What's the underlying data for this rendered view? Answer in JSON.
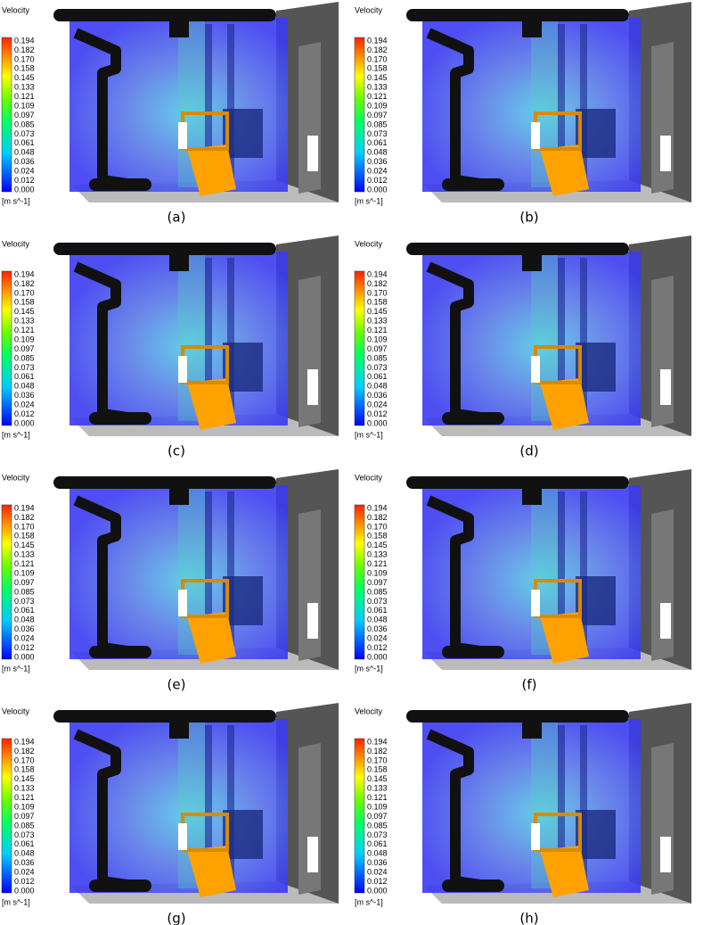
{
  "panels": [
    {
      "legend_title": "Velocity",
      "labels": [
        "0.194",
        "0.182",
        "0.170",
        "0.158",
        "0.145",
        "0.133",
        "0.121",
        "0.109",
        "0.097",
        "0.085",
        "0.073",
        "0.061",
        "0.048",
        "0.036",
        "0.024",
        "0.012",
        "0.000"
      ],
      "unit": "[m s^-1]",
      "caption": "(a)"
    },
    {
      "legend_title": "Velocity",
      "labels": [
        "0.194",
        "0.182",
        "0.170",
        "0.158",
        "0.145",
        "0.133",
        "0.121",
        "0.109",
        "0.097",
        "0.085",
        "0.073",
        "0.061",
        "0.048",
        "0.036",
        "0.024",
        "0.012",
        "0.000"
      ],
      "unit": "[m s^-1]",
      "caption": "(b)"
    },
    {
      "legend_title": "Velocity",
      "labels": [
        "0.194",
        "0.182",
        "0.170",
        "0.158",
        "0.145",
        "0.133",
        "0.121",
        "0.109",
        "0.097",
        "0.085",
        "0.073",
        "0.061",
        "0.048",
        "0.036",
        "0.024",
        "0.012",
        "0.000"
      ],
      "unit": "[m s^-1]",
      "caption": "(c)"
    },
    {
      "legend_title": "Velocity",
      "labels": [
        "0.194",
        "0.182",
        "0.170",
        "0.158",
        "0.145",
        "0.133",
        "0.121",
        "0.109",
        "0.097",
        "0.085",
        "0.073",
        "0.061",
        "0.048",
        "0.036",
        "0.024",
        "0.012",
        "0.000"
      ],
      "unit": "[m s^-1]",
      "caption": "(d)"
    },
    {
      "legend_title": "Velocity",
      "labels": [
        "0.194",
        "0.182",
        "0.170",
        "0.158",
        "0.145",
        "0.133",
        "0.121",
        "0.109",
        "0.097",
        "0.085",
        "0.073",
        "0.061",
        "0.048",
        "0.036",
        "0.024",
        "0.012",
        "0.000"
      ],
      "unit": "[m s^-1]",
      "caption": "(e)"
    },
    {
      "legend_title": "Velocity",
      "labels": [
        "0.194",
        "0.182",
        "0.170",
        "0.158",
        "0.145",
        "0.133",
        "0.121",
        "0.109",
        "0.097",
        "0.085",
        "0.073",
        "0.061",
        "0.048",
        "0.036",
        "0.024",
        "0.012",
        "0.000"
      ],
      "unit": "[m s^-1]",
      "caption": "(f)"
    },
    {
      "legend_title": "Velocity",
      "labels": [
        "0.194",
        "0.182",
        "0.170",
        "0.158",
        "0.145",
        "0.133",
        "0.121",
        "0.109",
        "0.097",
        "0.085",
        "0.073",
        "0.061",
        "0.048",
        "0.036",
        "0.024",
        "0.012",
        "0.000"
      ],
      "unit": "[m s^-1]",
      "caption": "(g)"
    },
    {
      "legend_title": "Velocity",
      "labels": [
        "0.194",
        "0.182",
        "0.170",
        "0.158",
        "0.145",
        "0.133",
        "0.121",
        "0.109",
        "0.097",
        "0.085",
        "0.073",
        "0.061",
        "0.048",
        "0.036",
        "0.024",
        "0.012",
        "0.000"
      ],
      "unit": "[m s^-1]",
      "caption": "(h)"
    }
  ]
}
